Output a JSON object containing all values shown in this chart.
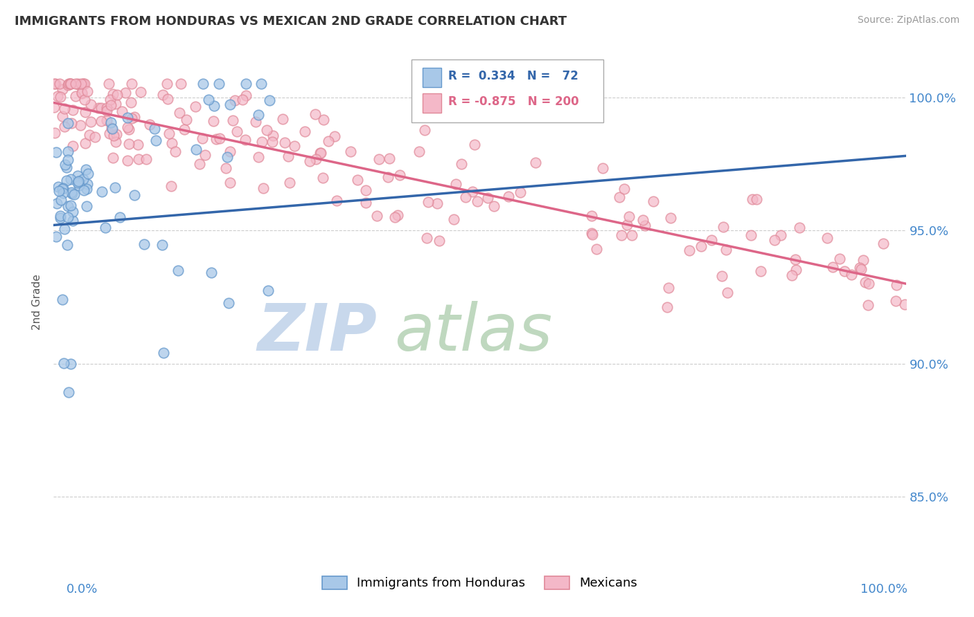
{
  "title": "IMMIGRANTS FROM HONDURAS VS MEXICAN 2ND GRADE CORRELATION CHART",
  "source": "Source: ZipAtlas.com",
  "ylabel": "2nd Grade",
  "y_tick_labels": [
    "85.0%",
    "90.0%",
    "95.0%",
    "100.0%"
  ],
  "y_tick_values": [
    0.85,
    0.9,
    0.95,
    1.0
  ],
  "x_range": [
    0.0,
    1.0
  ],
  "y_range": [
    0.828,
    1.018
  ],
  "blue_color": "#a8c8e8",
  "blue_edge_color": "#6699cc",
  "pink_color": "#f4b8c8",
  "pink_edge_color": "#e08898",
  "blue_line_color": "#3366aa",
  "pink_line_color": "#dd6688",
  "title_color": "#333333",
  "axis_tick_color": "#4488cc",
  "background_color": "#ffffff",
  "grid_color": "#cccccc",
  "legend_border_color": "#aaaaaa",
  "legend_text_blue_color": "#3366aa",
  "legend_text_pink_color": "#dd6688",
  "watermark_zip_color": "#c8d8ec",
  "watermark_atlas_color": "#b8d4b8",
  "blue_trendline_start_x": 0.0,
  "blue_trendline_end_x": 1.0,
  "blue_trendline_start_y": 0.952,
  "blue_trendline_end_y": 0.978,
  "pink_trendline_start_x": 0.0,
  "pink_trendline_end_x": 1.0,
  "pink_trendline_start_y": 0.998,
  "pink_trendline_end_y": 0.93
}
